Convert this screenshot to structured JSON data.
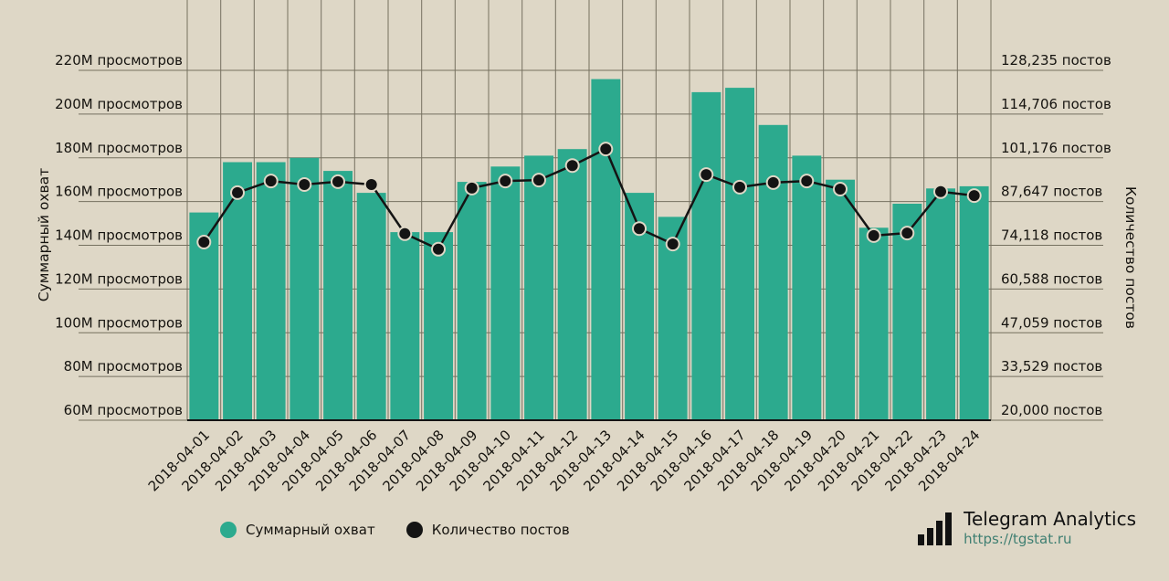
{
  "colors": {
    "background": "#ded7c6",
    "bar": "#2caa8e",
    "line": "#141414",
    "grid": "#75705f",
    "text": "#15130f",
    "url": "#3f7f72"
  },
  "chart_data": {
    "type": "bar",
    "subtype": "bar+line combo, dual axis",
    "categories": [
      "2018-04-01",
      "2018-04-02",
      "2018-04-03",
      "2018-04-04",
      "2018-04-05",
      "2018-04-06",
      "2018-04-07",
      "2018-04-08",
      "2018-04-09",
      "2018-04-10",
      "2018-04-11",
      "2018-04-12",
      "2018-04-13",
      "2018-04-14",
      "2018-04-15",
      "2018-04-16",
      "2018-04-17",
      "2018-04-18",
      "2018-04-19",
      "2018-04-20",
      "2018-04-21",
      "2018-04-22",
      "2018-04-23",
      "2018-04-24"
    ],
    "series": [
      {
        "name": "Суммарный охват",
        "type": "bar",
        "axis": "left",
        "unit": "M просмотров",
        "values": [
          155,
          178,
          178,
          180,
          174,
          164,
          146,
          146,
          169,
          176,
          181,
          184,
          216,
          164,
          153,
          210,
          212,
          195,
          181,
          170,
          148,
          159,
          166,
          167
        ]
      },
      {
        "name": "Количество постов",
        "type": "line",
        "axis": "right",
        "unit": "постов",
        "values": [
          75100,
          90400,
          94000,
          92900,
          93800,
          92900,
          77700,
          72900,
          91800,
          94000,
          94300,
          98800,
          103900,
          79300,
          74500,
          96000,
          92100,
          93500,
          94000,
          91500,
          77100,
          77900,
          90700,
          89500
        ]
      }
    ],
    "left_axis": {
      "title": "Суммарный охват",
      "ticks": [
        220,
        200,
        180,
        160,
        140,
        120,
        100,
        80,
        60
      ],
      "tick_labels": [
        "220M просмотров",
        "200M просмотров",
        "180M просмотров",
        "160M просмотров",
        "140M просмотров",
        "120M просмотров",
        "100M просмотров",
        "80M просмотров",
        "60M просмотров"
      ],
      "min": 60,
      "max": 220
    },
    "right_axis": {
      "title": "Количество постов",
      "tick_labels": [
        "128,235 постов",
        "114,706 постов",
        "101,176 постов",
        "87,647 постов",
        "74,118 постов",
        "60,588 постов",
        "47,059 постов",
        "33,529 постов",
        "20,000 постов"
      ],
      "min": 20000,
      "max": 128235
    },
    "grid": true,
    "legend_position": "bottom"
  },
  "legend": {
    "items": [
      {
        "label": "Суммарный охват",
        "color": "#2caa8e"
      },
      {
        "label": "Количество постов",
        "color": "#141414"
      }
    ]
  },
  "footer": {
    "brand": "Telegram Analytics",
    "url": "https://tgstat.ru"
  }
}
